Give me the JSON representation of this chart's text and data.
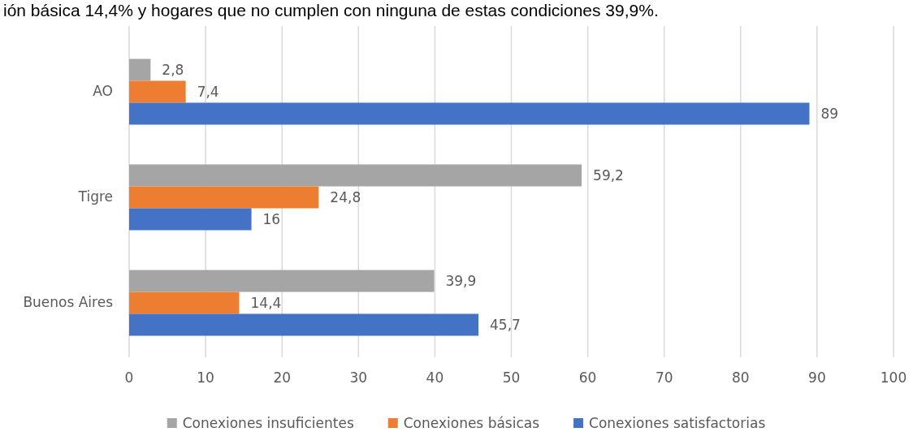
{
  "chart_data": {
    "type": "bar",
    "orientation": "horizontal",
    "annotations": [
      "ión básica 14,4% y hogares que no cumplen con ninguna de estas condiciones 39,9%."
    ],
    "categories": [
      "AO",
      "Tigre",
      "Buenos Aires"
    ],
    "series": [
      {
        "name": "Conexiones insuficientes",
        "color": "#a5a5a5",
        "values": [
          2.8,
          59.2,
          39.9
        ],
        "value_labels": [
          "2,8",
          "59,2",
          "39,9"
        ]
      },
      {
        "name": "Conexiones básicas",
        "color": "#ed7d31",
        "values": [
          7.4,
          24.8,
          14.4
        ],
        "value_labels": [
          "7,4",
          "24,8",
          "14,4"
        ]
      },
      {
        "name": "Conexiones satisfactorias",
        "color": "#4472c4",
        "values": [
          89,
          16,
          45.7
        ],
        "value_labels": [
          "89",
          "16",
          "45,7"
        ]
      }
    ],
    "xlim": [
      0,
      100
    ],
    "xticks": [
      0,
      10,
      20,
      30,
      40,
      50,
      60,
      70,
      80,
      90,
      100
    ],
    "grid": "x",
    "legend": "bottom"
  }
}
